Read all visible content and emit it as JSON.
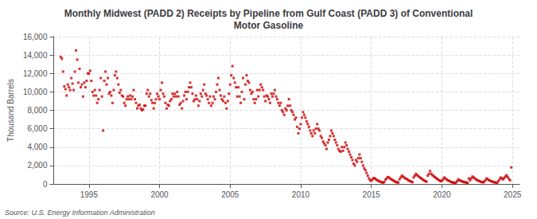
{
  "chart_data": {
    "type": "scatter",
    "title": "Monthly Midwest (PADD 2) Receipts by Pipeline from Gulf Coast (PADD 3) of Conventional\nMotor Gasoline",
    "ylabel": "Thousand Barrels",
    "annotations": [
      "Source: U.S. Energy Information Administration"
    ],
    "color": "#cc0000",
    "marker": "square",
    "grid": true,
    "xlim": [
      1992.5,
      2025.5
    ],
    "xticks": [
      1995,
      2000,
      2005,
      2010,
      2015,
      2020,
      2025
    ],
    "ylim": [
      0,
      16000
    ],
    "yticks": [
      0,
      {
        "value": 2000,
        "label": "2,000"
      },
      {
        "value": 4000,
        "label": "4,000"
      },
      {
        "value": 6000,
        "label": "6,000"
      },
      {
        "value": 8000,
        "label": "8,000"
      },
      {
        "value": 10000,
        "label": "10,000"
      },
      {
        "value": 12000,
        "label": "12,000"
      },
      {
        "value": 14000,
        "label": "14,000"
      },
      {
        "value": 16000,
        "label": "16,000"
      }
    ],
    "x": [
      1993.0,
      1993.083,
      1993.167,
      1993.25,
      1993.333,
      1993.417,
      1993.5,
      1993.583,
      1993.667,
      1993.75,
      1993.833,
      1993.917,
      1994.0,
      1994.083,
      1994.167,
      1994.25,
      1994.333,
      1994.417,
      1994.5,
      1994.583,
      1994.667,
      1994.75,
      1994.833,
      1994.917,
      1995.0,
      1995.083,
      1995.167,
      1995.25,
      1995.333,
      1995.417,
      1995.5,
      1995.583,
      1995.667,
      1995.75,
      1995.833,
      1995.917,
      1996.0,
      1996.083,
      1996.167,
      1996.25,
      1996.333,
      1996.417,
      1996.5,
      1996.583,
      1996.667,
      1996.75,
      1996.833,
      1996.917,
      1997.0,
      1997.083,
      1997.167,
      1997.25,
      1997.333,
      1997.417,
      1997.5,
      1997.583,
      1997.667,
      1997.75,
      1997.833,
      1997.917,
      1998.0,
      1998.083,
      1998.167,
      1998.25,
      1998.333,
      1998.417,
      1998.5,
      1998.583,
      1998.667,
      1998.75,
      1998.833,
      1998.917,
      1999.0,
      1999.083,
      1999.167,
      1999.25,
      1999.333,
      1999.417,
      1999.5,
      1999.583,
      1999.667,
      1999.75,
      1999.833,
      1999.917,
      2000.0,
      2000.083,
      2000.167,
      2000.25,
      2000.333,
      2000.417,
      2000.5,
      2000.583,
      2000.667,
      2000.75,
      2000.833,
      2000.917,
      2001.0,
      2001.083,
      2001.167,
      2001.25,
      2001.333,
      2001.417,
      2001.5,
      2001.583,
      2001.667,
      2001.75,
      2001.833,
      2001.917,
      2002.0,
      2002.083,
      2002.167,
      2002.25,
      2002.333,
      2002.417,
      2002.5,
      2002.583,
      2002.667,
      2002.75,
      2002.833,
      2002.917,
      2003.0,
      2003.083,
      2003.167,
      2003.25,
      2003.333,
      2003.417,
      2003.5,
      2003.583,
      2003.667,
      2003.75,
      2003.833,
      2003.917,
      2004.0,
      2004.083,
      2004.167,
      2004.25,
      2004.333,
      2004.417,
      2004.5,
      2004.583,
      2004.667,
      2004.75,
      2004.833,
      2004.917,
      2005.0,
      2005.083,
      2005.167,
      2005.25,
      2005.333,
      2005.417,
      2005.5,
      2005.583,
      2005.667,
      2005.75,
      2005.833,
      2005.917,
      2006.0,
      2006.083,
      2006.167,
      2006.25,
      2006.333,
      2006.417,
      2006.5,
      2006.583,
      2006.667,
      2006.75,
      2006.833,
      2006.917,
      2007.0,
      2007.083,
      2007.167,
      2007.25,
      2007.333,
      2007.417,
      2007.5,
      2007.583,
      2007.667,
      2007.75,
      2007.833,
      2007.917,
      2008.0,
      2008.083,
      2008.167,
      2008.25,
      2008.333,
      2008.417,
      2008.5,
      2008.583,
      2008.667,
      2008.75,
      2008.833,
      2008.917,
      2009.0,
      2009.083,
      2009.167,
      2009.25,
      2009.333,
      2009.417,
      2009.5,
      2009.583,
      2009.667,
      2009.75,
      2009.833,
      2009.917,
      2010.0,
      2010.083,
      2010.167,
      2010.25,
      2010.333,
      2010.417,
      2010.5,
      2010.583,
      2010.667,
      2010.75,
      2010.833,
      2010.917,
      2011.0,
      2011.083,
      2011.167,
      2011.25,
      2011.333,
      2011.417,
      2011.5,
      2011.583,
      2011.667,
      2011.75,
      2011.833,
      2011.917,
      2012.0,
      2012.083,
      2012.167,
      2012.25,
      2012.333,
      2012.417,
      2012.5,
      2012.583,
      2012.667,
      2012.75,
      2012.833,
      2012.917,
      2013.0,
      2013.083,
      2013.167,
      2013.25,
      2013.333,
      2013.417,
      2013.5,
      2013.583,
      2013.667,
      2013.75,
      2013.833,
      2013.917,
      2014.0,
      2014.083,
      2014.167,
      2014.25,
      2014.333,
      2014.417,
      2014.5,
      2014.583,
      2014.667,
      2014.75,
      2014.833,
      2014.917,
      2015.0,
      2015.083,
      2015.167,
      2015.25,
      2015.333,
      2015.417,
      2015.5,
      2015.583,
      2015.667,
      2015.75,
      2015.833,
      2015.917,
      2016.0,
      2016.083,
      2016.167,
      2016.25,
      2016.333,
      2016.417,
      2016.5,
      2016.583,
      2016.667,
      2016.75,
      2016.833,
      2016.917,
      2017.0,
      2017.083,
      2017.167,
      2017.25,
      2017.333,
      2017.417,
      2017.5,
      2017.583,
      2017.667,
      2017.75,
      2017.833,
      2017.917,
      2018.0,
      2018.083,
      2018.167,
      2018.25,
      2018.333,
      2018.417,
      2018.5,
      2018.583,
      2018.667,
      2018.75,
      2018.833,
      2018.917,
      2019.0,
      2019.083,
      2019.167,
      2019.25,
      2019.333,
      2019.417,
      2019.5,
      2019.583,
      2019.667,
      2019.75,
      2019.833,
      2019.917,
      2020.0,
      2020.083,
      2020.167,
      2020.25,
      2020.333,
      2020.417,
      2020.5,
      2020.583,
      2020.667,
      2020.75,
      2020.833,
      2020.917,
      2021.0,
      2021.083,
      2021.167,
      2021.25,
      2021.333,
      2021.417,
      2021.5,
      2021.583,
      2021.667,
      2021.75,
      2021.833,
      2021.917,
      2022.0,
      2022.083,
      2022.167,
      2022.25,
      2022.333,
      2022.417,
      2022.5,
      2022.583,
      2022.667,
      2022.75,
      2022.833,
      2022.917,
      2023.0,
      2023.083,
      2023.167,
      2023.25,
      2023.333,
      2023.417,
      2023.5,
      2023.583,
      2023.667,
      2023.75,
      2023.833,
      2023.917,
      2024.0,
      2024.083,
      2024.167,
      2024.25,
      2024.333,
      2024.417,
      2024.5,
      2024.583,
      2024.667,
      2024.75,
      2024.833,
      2024.917
    ],
    "values": [
      13800,
      13600,
      12200,
      10600,
      10300,
      9600,
      10800,
      10500,
      10200,
      11500,
      10900,
      10200,
      12200,
      14500,
      13500,
      11000,
      12500,
      10500,
      10800,
      9500,
      11000,
      10500,
      11200,
      12000,
      12000,
      12300,
      11200,
      10000,
      9600,
      10200,
      9600,
      8800,
      9200,
      10200,
      11500,
      9500,
      5800,
      11200,
      12200,
      10800,
      11500,
      9800,
      10000,
      9600,
      8800,
      10200,
      11800,
      12200,
      11500,
      10800,
      9900,
      10200,
      9600,
      9500,
      8800,
      8500,
      9200,
      9500,
      9200,
      9600,
      9200,
      9500,
      10200,
      9200,
      8800,
      8200,
      8500,
      8600,
      8200,
      8000,
      8100,
      8500,
      8500,
      9800,
      10200,
      9500,
      9800,
      9100,
      8800,
      8200,
      8800,
      9200,
      9800,
      9500,
      9200,
      10200,
      11000,
      9800,
      9500,
      8800,
      8200,
      8600,
      8500,
      9000,
      9200,
      9800,
      9500,
      9800,
      9500,
      10000,
      9500,
      8600,
      8800,
      8200,
      9000,
      9600,
      10000,
      9200,
      10000,
      10500,
      11000,
      10500,
      9800,
      9000,
      9200,
      9600,
      9200,
      8500,
      9000,
      9800,
      9500,
      10200,
      10800,
      9800,
      9600,
      9200,
      8800,
      9500,
      8500,
      8800,
      9500,
      9200,
      10000,
      10800,
      11500,
      10200,
      9600,
      9200,
      9000,
      9500,
      8800,
      8200,
      9000,
      9800,
      10800,
      11800,
      12800,
      11500,
      11000,
      10500,
      9500,
      10500,
      9500,
      8800,
      10000,
      11500,
      9200,
      10800,
      11800,
      11200,
      11000,
      10200,
      9800,
      10000,
      9200,
      8800,
      9200,
      10200,
      9500,
      10200,
      10800,
      10500,
      10200,
      9500,
      9000,
      9600,
      9500,
      9200,
      8800,
      9800,
      9500,
      9800,
      10200,
      9500,
      9200,
      8800,
      8500,
      8800,
      8000,
      7800,
      7500,
      8200,
      8000,
      8500,
      9200,
      8500,
      8000,
      7800,
      7500,
      7000,
      7200,
      6200,
      5500,
      6000,
      6500,
      7200,
      7800,
      7500,
      7200,
      6800,
      6500,
      6200,
      5800,
      5500,
      5200,
      5800,
      5500,
      6000,
      6500,
      6000,
      5800,
      5200,
      5000,
      4600,
      4400,
      4200,
      3800,
      4500,
      4800,
      5200,
      5800,
      5500,
      5200,
      4800,
      4500,
      4200,
      3800,
      3600,
      3500,
      4000,
      3600,
      4000,
      4500,
      4200,
      3800,
      3500,
      3200,
      2900,
      2600,
      2200,
      2000,
      2600,
      2400,
      2800,
      3200,
      2800,
      2400,
      2000,
      1700,
      1500,
      1200,
      900,
      600,
      400,
      350,
      500,
      650,
      600,
      500,
      400,
      350,
      280,
      220,
      180,
      150,
      200,
      450,
      600,
      750,
      700,
      600,
      500,
      450,
      350,
      280,
      200,
      180,
      150,
      500,
      700,
      900,
      800,
      700,
      600,
      550,
      450,
      380,
      300,
      250,
      200,
      700,
      900,
      1100,
      950,
      850,
      750,
      650,
      550,
      450,
      380,
      300,
      250,
      900,
      1100,
      1400,
      1100,
      950,
      850,
      750,
      650,
      550,
      450,
      380,
      300,
      350,
      500,
      700,
      600,
      500,
      400,
      350,
      280,
      200,
      180,
      150,
      100,
      150,
      300,
      500,
      400,
      350,
      280,
      250,
      200,
      180,
      150,
      100,
      600,
      400,
      600,
      800,
      700,
      600,
      500,
      430,
      350,
      300,
      250,
      200,
      180,
      250,
      400,
      600,
      500,
      420,
      350,
      300,
      250,
      200,
      180,
      150,
      100,
      300,
      500,
      700,
      600,
      500,
      650,
      800,
      950,
      750,
      550,
      400,
      1800
    ]
  }
}
